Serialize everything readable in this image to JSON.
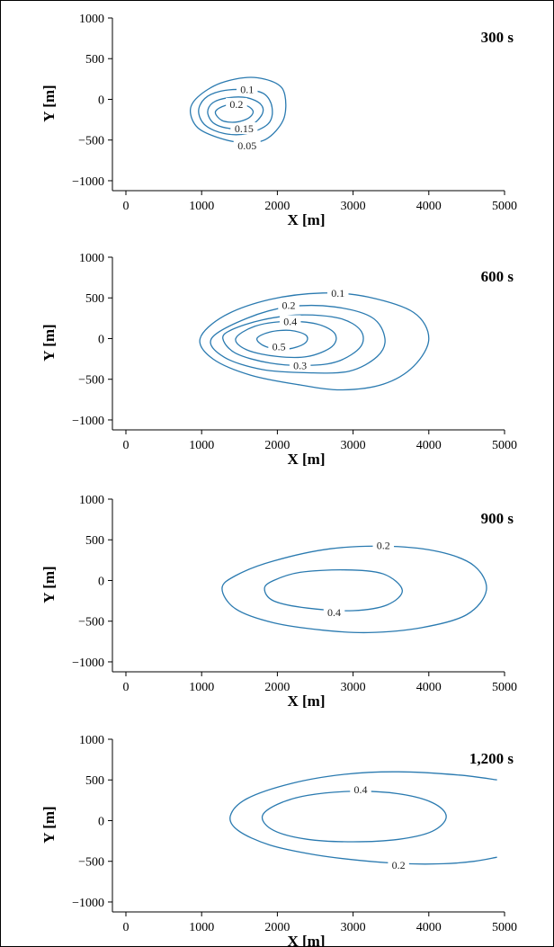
{
  "chart_data": [
    {
      "type": "contour",
      "title": "300 s",
      "xlabel": "X [m]",
      "ylabel": "Y [m]",
      "xlim": [
        -150,
        5000
      ],
      "ylim": [
        -1100,
        1000
      ],
      "xticks": [
        0,
        1000,
        2000,
        3000,
        4000,
        5000
      ],
      "yticks": [
        1000,
        500,
        0,
        -500,
        -1000
      ],
      "ytick_labels": [
        "1000",
        "500",
        "0",
        "−500",
        "−1000"
      ],
      "line_color": "#2a7ab0",
      "contours": [
        {
          "level": "0.05",
          "points": [
            [
              850,
              -140
            ],
            [
              950,
              -350
            ],
            [
              1250,
              -480
            ],
            [
              1550,
              -530
            ],
            [
              1850,
              -490
            ],
            [
              2080,
              -250
            ],
            [
              2100,
              50
            ],
            [
              1980,
              200
            ],
            [
              1650,
              270
            ],
            [
              1250,
              200
            ],
            [
              950,
              30
            ],
            [
              850,
              -140
            ]
          ],
          "label_at": [
            1600,
            -570
          ]
        },
        {
          "level": "0.1",
          "points": [
            [
              960,
              -150
            ],
            [
              1050,
              -320
            ],
            [
              1300,
              -420
            ],
            [
              1600,
              -420
            ],
            [
              1880,
              -300
            ],
            [
              1930,
              -100
            ],
            [
              1820,
              70
            ],
            [
              1550,
              120
            ],
            [
              1250,
              100
            ],
            [
              1040,
              10
            ],
            [
              960,
              -150
            ]
          ],
          "label_at": [
            1600,
            120
          ]
        },
        {
          "level": "0.15",
          "points": [
            [
              1080,
              -160
            ],
            [
              1170,
              -300
            ],
            [
              1400,
              -360
            ],
            [
              1650,
              -320
            ],
            [
              1800,
              -180
            ],
            [
              1780,
              -60
            ],
            [
              1600,
              20
            ],
            [
              1350,
              20
            ],
            [
              1150,
              -40
            ],
            [
              1080,
              -160
            ]
          ],
          "label_at": [
            1560,
            -360
          ]
        },
        {
          "level": "0.2",
          "points": [
            [
              1180,
              -160
            ],
            [
              1270,
              -260
            ],
            [
              1450,
              -280
            ],
            [
              1620,
              -230
            ],
            [
              1680,
              -150
            ],
            [
              1600,
              -80
            ],
            [
              1430,
              -60
            ],
            [
              1270,
              -90
            ],
            [
              1180,
              -160
            ]
          ],
          "label_at": [
            1460,
            -60
          ]
        }
      ]
    },
    {
      "type": "contour",
      "title": "600 s",
      "xlabel": "X [m]",
      "ylabel": "Y [m]",
      "xlim": [
        -150,
        5000
      ],
      "ylim": [
        -1100,
        1000
      ],
      "xticks": [
        0,
        1000,
        2000,
        3000,
        4000,
        5000
      ],
      "yticks": [
        1000,
        500,
        0,
        -500,
        -1000
      ],
      "ytick_labels": [
        "1000",
        "500",
        "0",
        "−500",
        "−1000"
      ],
      "line_color": "#2a7ab0",
      "contours": [
        {
          "level": "0.1",
          "points": [
            [
              980,
              0
            ],
            [
              1150,
              -250
            ],
            [
              1650,
              -450
            ],
            [
              2300,
              -570
            ],
            [
              2850,
              -630
            ],
            [
              3400,
              -560
            ],
            [
              3800,
              -340
            ],
            [
              4000,
              0
            ],
            [
              3800,
              320
            ],
            [
              3200,
              510
            ],
            [
              2600,
              560
            ],
            [
              1900,
              480
            ],
            [
              1300,
              280
            ],
            [
              980,
              0
            ]
          ],
          "label_at": [
            2800,
            560
          ]
        },
        {
          "level": "0.2",
          "points": [
            [
              1130,
              0
            ],
            [
              1300,
              -230
            ],
            [
              1800,
              -380
            ],
            [
              2400,
              -420
            ],
            [
              2950,
              -400
            ],
            [
              3320,
              -220
            ],
            [
              3420,
              0
            ],
            [
              3250,
              260
            ],
            [
              2750,
              390
            ],
            [
              2150,
              390
            ],
            [
              1600,
              250
            ],
            [
              1130,
              0
            ]
          ],
          "label_at": [
            2150,
            410
          ]
        },
        {
          "level": "0.3",
          "points": [
            [
              1280,
              0
            ],
            [
              1450,
              -180
            ],
            [
              1900,
              -300
            ],
            [
              2400,
              -330
            ],
            [
              2800,
              -280
            ],
            [
              3100,
              -100
            ],
            [
              3100,
              100
            ],
            [
              2820,
              250
            ],
            [
              2300,
              290
            ],
            [
              1800,
              230
            ],
            [
              1400,
              110
            ],
            [
              1280,
              0
            ]
          ],
          "label_at": [
            2300,
            -330
          ]
        },
        {
          "level": "0.4",
          "points": [
            [
              1450,
              0
            ],
            [
              1600,
              -140
            ],
            [
              2000,
              -220
            ],
            [
              2400,
              -220
            ],
            [
              2720,
              -100
            ],
            [
              2760,
              60
            ],
            [
              2520,
              180
            ],
            [
              2100,
              210
            ],
            [
              1700,
              150
            ],
            [
              1450,
              0
            ]
          ],
          "label_at": [
            2170,
            210
          ]
        },
        {
          "level": "0.5",
          "points": [
            [
              1730,
              0
            ],
            [
              1850,
              -100
            ],
            [
              2130,
              -130
            ],
            [
              2360,
              -60
            ],
            [
              2380,
              40
            ],
            [
              2170,
              100
            ],
            [
              1900,
              80
            ],
            [
              1730,
              0
            ]
          ],
          "label_at": [
            2020,
            -100
          ]
        }
      ]
    },
    {
      "type": "contour",
      "title": "900 s",
      "xlabel": "X [m]",
      "ylabel": "Y [m]",
      "xlim": [
        -150,
        5000
      ],
      "ylim": [
        -1100,
        1000
      ],
      "xticks": [
        0,
        1000,
        2000,
        3000,
        4000,
        5000
      ],
      "yticks": [
        1000,
        500,
        0,
        -500,
        -1000
      ],
      "ytick_labels": [
        "1000",
        "500",
        "0",
        "−500",
        "−1000"
      ],
      "line_color": "#2a7ab0",
      "contours": [
        {
          "level": "0.2",
          "points": [
            [
              1270,
              -100
            ],
            [
              1450,
              -350
            ],
            [
              1950,
              -520
            ],
            [
              2600,
              -610
            ],
            [
              3200,
              -640
            ],
            [
              3900,
              -580
            ],
            [
              4500,
              -420
            ],
            [
              4760,
              -120
            ],
            [
              4600,
              180
            ],
            [
              4150,
              350
            ],
            [
              3500,
              420
            ],
            [
              2700,
              390
            ],
            [
              1950,
              240
            ],
            [
              1450,
              60
            ],
            [
              1270,
              -100
            ]
          ],
          "label_at": [
            3400,
            430
          ]
        },
        {
          "level": "0.4",
          "points": [
            [
              1830,
              -100
            ],
            [
              1950,
              -250
            ],
            [
              2400,
              -340
            ],
            [
              3000,
              -370
            ],
            [
              3450,
              -300
            ],
            [
              3650,
              -120
            ],
            [
              3400,
              80
            ],
            [
              2900,
              130
            ],
            [
              2300,
              100
            ],
            [
              1950,
              0
            ],
            [
              1830,
              -100
            ]
          ],
          "label_at": [
            2750,
            -390
          ]
        }
      ]
    },
    {
      "type": "contour",
      "title": "1,200 s",
      "xlabel": "X [m]",
      "ylabel": "Y [m]",
      "xlim": [
        -150,
        5000
      ],
      "ylim": [
        -1100,
        1000
      ],
      "xticks": [
        0,
        1000,
        2000,
        3000,
        4000,
        5000
      ],
      "yticks": [
        1000,
        500,
        0,
        -500,
        -1000
      ],
      "ytick_labels": [
        "1000",
        "500",
        "0",
        "−500",
        "−1000"
      ],
      "line_color": "#2a7ab0",
      "contours": [
        {
          "level": "0.2",
          "points": [
            [
              4900,
              500
            ],
            [
              4400,
              560
            ],
            [
              3600,
              600
            ],
            [
              2900,
              570
            ],
            [
              2200,
              460
            ],
            [
              1600,
              270
            ],
            [
              1380,
              60
            ],
            [
              1480,
              -120
            ],
            [
              1900,
              -300
            ],
            [
              2500,
              -420
            ],
            [
              3100,
              -490
            ],
            [
              3700,
              -530
            ],
            [
              4200,
              -530
            ],
            [
              4600,
              -500
            ],
            [
              4900,
              -450
            ]
          ],
          "label_at": [
            3600,
            -550
          ]
        },
        {
          "level": "0.4",
          "points": [
            [
              1800,
              50
            ],
            [
              1950,
              -120
            ],
            [
              2400,
              -230
            ],
            [
              3000,
              -260
            ],
            [
              3600,
              -230
            ],
            [
              4050,
              -130
            ],
            [
              4230,
              50
            ],
            [
              4050,
              220
            ],
            [
              3600,
              330
            ],
            [
              3000,
              360
            ],
            [
              2400,
              310
            ],
            [
              2000,
              200
            ],
            [
              1800,
              50
            ]
          ],
          "label_at": [
            3100,
            380
          ]
        }
      ]
    }
  ]
}
